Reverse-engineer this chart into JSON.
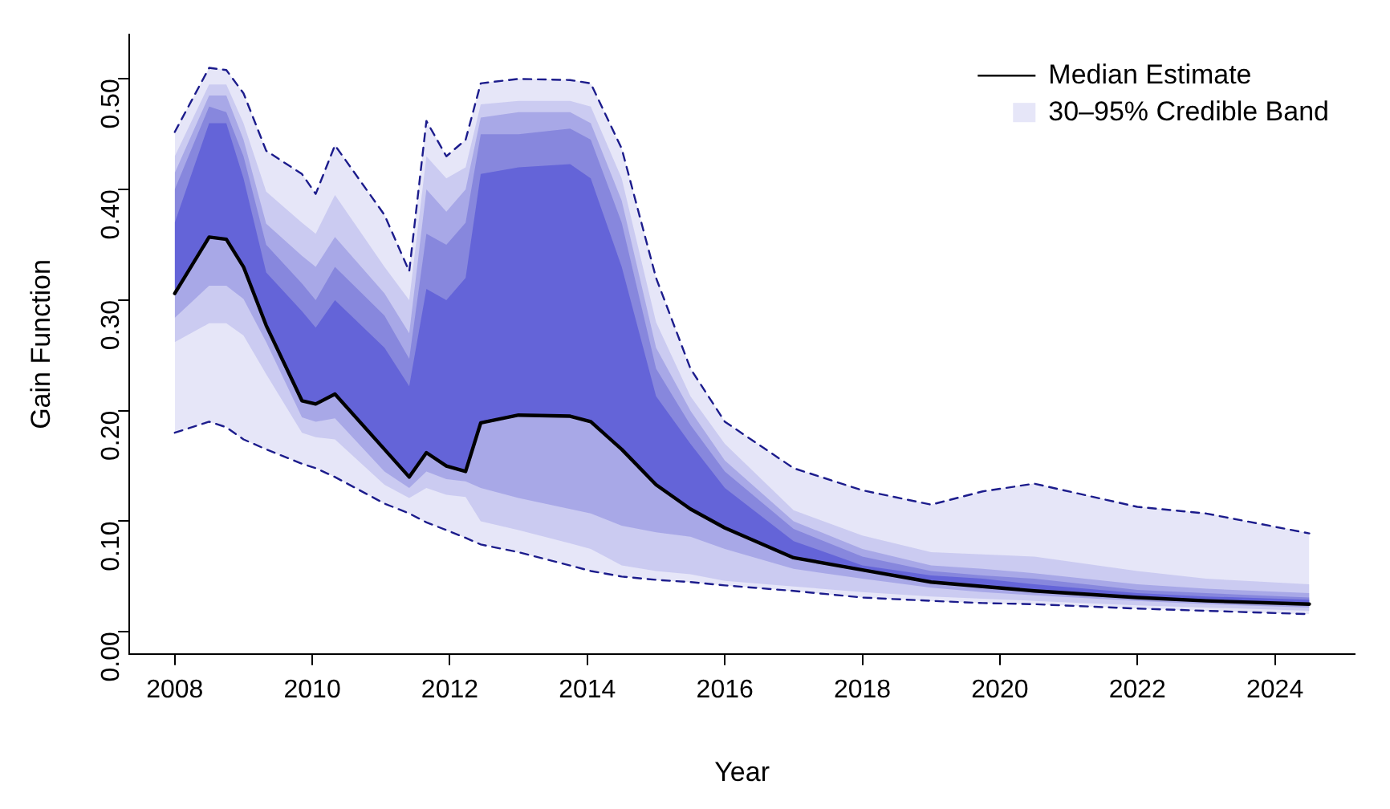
{
  "chart_data": {
    "type": "line",
    "xlabel": "Year",
    "ylabel": "Gain Function",
    "legend": "top right",
    "x": [
      2008,
      2008.5,
      2008.75,
      2009,
      2009.33,
      2009.85,
      2010.05,
      2010.33,
      2011.05,
      2011.41,
      2011.66,
      2011.95,
      2012.23,
      2012.45,
      2013,
      2013.75,
      2014.05,
      2014.5,
      2015,
      2015.5,
      2016,
      2017,
      2018,
      2019,
      2019.75,
      2020.5,
      2022,
      2023,
      2024.5
    ],
    "xlim": [
      2007.34,
      2025.16
    ],
    "xticks": [
      2008,
      2010,
      2012,
      2014,
      2016,
      2018,
      2020,
      2022,
      2024
    ],
    "ylim": [
      -0.02,
      0.54
    ],
    "yticks": [
      {
        "value": 0,
        "label": "0.00"
      },
      {
        "value": 0.1,
        "label": "0.10"
      },
      {
        "value": 0.2,
        "label": "0.20"
      },
      {
        "value": 0.3,
        "label": "0.30"
      },
      {
        "value": 0.4,
        "label": "0.40"
      },
      {
        "value": 0.5,
        "label": "0.50"
      }
    ],
    "series": [
      {
        "name": "Median Estimate",
        "type": "line",
        "color": "#000000",
        "values": [
          0.306,
          0.357,
          0.355,
          0.33,
          0.277,
          0.209,
          0.206,
          0.215,
          0.165,
          0.14,
          0.162,
          0.15,
          0.145,
          0.189,
          0.196,
          0.195,
          0.19,
          0.165,
          0.133,
          0.111,
          0.094,
          0.067,
          0.056,
          0.045,
          0.041,
          0.037,
          0.031,
          0.028,
          0.025
        ]
      },
      {
        "type": "line",
        "line_style": "dashed",
        "color": "#1c1c8c",
        "values": [
          0.452,
          0.51,
          0.508,
          0.487,
          0.435,
          0.414,
          0.396,
          0.44,
          0.377,
          0.326,
          0.462,
          0.43,
          0.445,
          0.496,
          0.5,
          0.499,
          0.496,
          0.437,
          0.32,
          0.238,
          0.19,
          0.148,
          0.128,
          0.115,
          0.127,
          0.134,
          0.113,
          0.107,
          0.089
        ]
      },
      {
        "type": "line",
        "line_style": "dashed",
        "color": "#1c1c8c",
        "values": [
          0.18,
          0.19,
          0.185,
          0.174,
          0.165,
          0.152,
          0.148,
          0.14,
          0.116,
          0.107,
          0.099,
          0.092,
          0.085,
          0.079,
          0.072,
          0.06,
          0.055,
          0.05,
          0.047,
          0.045,
          0.042,
          0.037,
          0.031,
          0.028,
          0.026,
          0.025,
          0.021,
          0.019,
          0.016
        ]
      },
      {
        "color": "#6464d8",
        "values": [
          null,
          null,
          null,
          null,
          null,
          null,
          null,
          null,
          null,
          null,
          null,
          null,
          null,
          null,
          null,
          null,
          null,
          null,
          null,
          null,
          null,
          null,
          null,
          null,
          null,
          null,
          null,
          null,
          null
        ],
        "lower": [
          0.306,
          0.357,
          0.355,
          0.33,
          0.277,
          0.209,
          0.206,
          0.215,
          0.165,
          0.14,
          0.162,
          0.15,
          0.145,
          0.189,
          0.196,
          0.195,
          0.19,
          0.165,
          0.133,
          0.111,
          0.094,
          0.067,
          0.056,
          0.045,
          0.041,
          0.037,
          0.031,
          0.028,
          0.025
        ],
        "upper": [
          0.37,
          0.46,
          0.46,
          0.41,
          0.325,
          0.29,
          0.275,
          0.3,
          0.257,
          0.222,
          0.31,
          0.3,
          0.32,
          0.414,
          0.42,
          0.423,
          0.41,
          0.33,
          0.213,
          0.17,
          0.13,
          0.082,
          0.06,
          0.051,
          0.048,
          0.043,
          0.035,
          0.032,
          0.029
        ]
      },
      {
        "color": "#8787dd",
        "values": [
          null,
          null,
          null,
          null,
          null,
          null,
          null,
          null,
          null,
          null,
          null,
          null,
          null,
          null,
          null,
          null,
          null,
          null,
          null,
          null,
          null,
          null,
          null,
          null,
          null,
          null,
          null,
          null,
          null
        ],
        "lower": [
          0.306,
          0.357,
          0.355,
          0.33,
          0.277,
          0.209,
          0.206,
          0.215,
          0.165,
          0.14,
          0.162,
          0.15,
          0.145,
          0.189,
          0.196,
          0.195,
          0.19,
          0.165,
          0.133,
          0.111,
          0.094,
          0.067,
          0.056,
          0.045,
          0.041,
          0.037,
          0.031,
          0.028,
          0.025
        ],
        "upper": [
          0.4,
          0.475,
          0.47,
          0.43,
          0.35,
          0.315,
          0.3,
          0.33,
          0.286,
          0.247,
          0.36,
          0.35,
          0.37,
          0.45,
          0.45,
          0.455,
          0.445,
          0.37,
          0.238,
          0.187,
          0.145,
          0.093,
          0.068,
          0.055,
          0.051,
          0.048,
          0.038,
          0.035,
          0.031
        ]
      },
      {
        "color": "#a8a8e7",
        "values": [
          null,
          null,
          null,
          null,
          null,
          null,
          null,
          null,
          null,
          null,
          null,
          null,
          null,
          null,
          null,
          null,
          null,
          null,
          null,
          null,
          null,
          null,
          null,
          null,
          null,
          null,
          null,
          null,
          null
        ],
        "lower": [
          0.284,
          0.313,
          0.313,
          0.301,
          0.262,
          0.194,
          0.19,
          0.193,
          0.145,
          0.13,
          0.145,
          0.138,
          0.136,
          0.13,
          0.121,
          0.111,
          0.107,
          0.096,
          0.09,
          0.086,
          0.075,
          0.057,
          0.048,
          0.04,
          0.036,
          0.033,
          0.028,
          0.025,
          0.022
        ],
        "upper": [
          0.415,
          0.485,
          0.485,
          0.445,
          0.369,
          0.34,
          0.33,
          0.357,
          0.306,
          0.27,
          0.4,
          0.38,
          0.4,
          0.465,
          0.47,
          0.47,
          0.46,
          0.39,
          0.257,
          0.2,
          0.155,
          0.1,
          0.075,
          0.06,
          0.057,
          0.053,
          0.043,
          0.039,
          0.035
        ]
      },
      {
        "color": "#cbcbf1",
        "values": [
          null,
          null,
          null,
          null,
          null,
          null,
          null,
          null,
          null,
          null,
          null,
          null,
          null,
          null,
          null,
          null,
          null,
          null,
          null,
          null,
          null,
          null,
          null,
          null,
          null,
          null,
          null,
          null,
          null
        ],
        "lower": [
          0.262,
          0.279,
          0.279,
          0.268,
          0.233,
          0.18,
          0.176,
          0.174,
          0.133,
          0.121,
          0.13,
          0.124,
          0.122,
          0.1,
          0.092,
          0.08,
          0.075,
          0.06,
          0.055,
          0.052,
          0.046,
          0.041,
          0.036,
          0.032,
          0.03,
          0.028,
          0.024,
          0.022,
          0.019
        ],
        "upper": [
          0.43,
          0.495,
          0.495,
          0.46,
          0.398,
          0.37,
          0.36,
          0.395,
          0.33,
          0.3,
          0.43,
          0.41,
          0.42,
          0.477,
          0.48,
          0.48,
          0.475,
          0.41,
          0.28,
          0.213,
          0.17,
          0.11,
          0.087,
          0.072,
          0.07,
          0.068,
          0.055,
          0.048,
          0.043
        ]
      },
      {
        "name": "30–95% Credible Band",
        "color": "#e6e6f8",
        "values": [
          null,
          null,
          null,
          null,
          null,
          null,
          null,
          null,
          null,
          null,
          null,
          null,
          null,
          null,
          null,
          null,
          null,
          null,
          null,
          null,
          null,
          null,
          null,
          null,
          null,
          null,
          null,
          null,
          null
        ],
        "lower": [
          0.18,
          0.19,
          0.185,
          0.174,
          0.165,
          0.152,
          0.148,
          0.14,
          0.116,
          0.107,
          0.099,
          0.092,
          0.085,
          0.079,
          0.072,
          0.06,
          0.055,
          0.05,
          0.047,
          0.045,
          0.042,
          0.037,
          0.031,
          0.028,
          0.026,
          0.025,
          0.021,
          0.019,
          0.016
        ],
        "upper": [
          0.452,
          0.51,
          0.508,
          0.487,
          0.435,
          0.414,
          0.396,
          0.44,
          0.377,
          0.326,
          0.462,
          0.43,
          0.445,
          0.496,
          0.5,
          0.499,
          0.496,
          0.437,
          0.32,
          0.238,
          0.19,
          0.148,
          0.128,
          0.115,
          0.127,
          0.134,
          0.113,
          0.107,
          0.089
        ]
      }
    ]
  }
}
